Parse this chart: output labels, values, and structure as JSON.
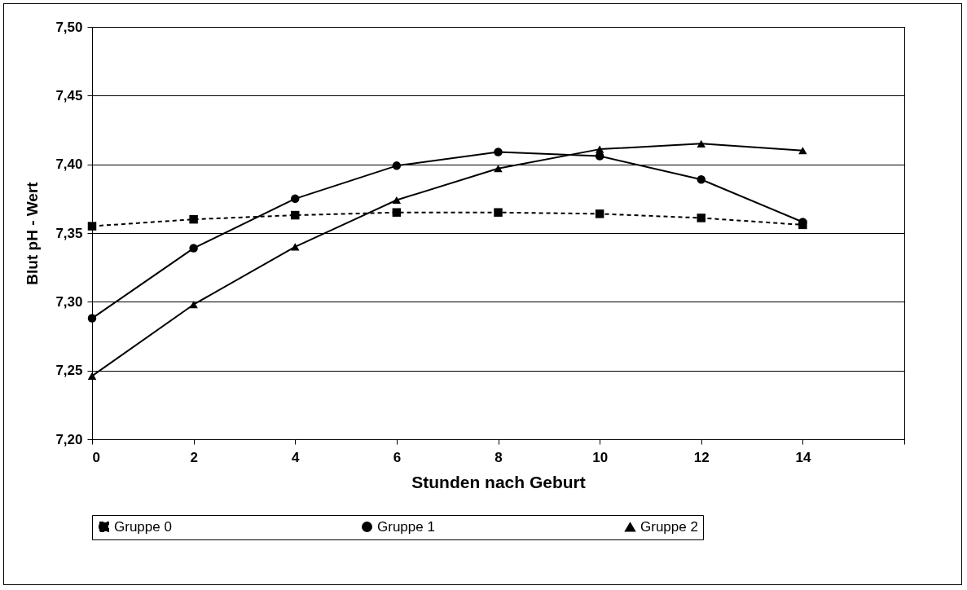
{
  "chart_data": {
    "type": "line",
    "xlabel": "Stunden nach Geburt",
    "ylabel": "Blut  pH  -  Wert",
    "x": [
      0,
      2,
      4,
      6,
      8,
      10,
      12,
      14
    ],
    "series": [
      {
        "name": "Gruppe 0",
        "color": "#000000",
        "marker": "square",
        "line_style": "dashed",
        "values": [
          7.355,
          7.36,
          7.363,
          7.365,
          7.365,
          7.364,
          7.361,
          7.356
        ]
      },
      {
        "name": "Gruppe 1",
        "color": "#000000",
        "marker": "circle",
        "line_style": "solid",
        "values": [
          7.288,
          7.339,
          7.375,
          7.399,
          7.409,
          7.406,
          7.389,
          7.358
        ]
      },
      {
        "name": "Gruppe 2",
        "color": "#000000",
        "marker": "triangle",
        "line_style": "solid",
        "values": [
          7.246,
          7.298,
          7.34,
          7.374,
          7.397,
          7.411,
          7.415,
          7.41
        ]
      }
    ],
    "xlim": [
      0,
      16
    ],
    "xticks": [
      0,
      2,
      4,
      6,
      8,
      10,
      12,
      14,
      {
        "value": 16,
        "label": null
      }
    ],
    "ylim": [
      7.2,
      7.5
    ],
    "yticks": [
      {
        "value": 7.2,
        "label": "7,20"
      },
      {
        "value": 7.25,
        "label": "7,25"
      },
      {
        "value": 7.3,
        "label": "7,30"
      },
      {
        "value": 7.35,
        "label": "7,35"
      },
      {
        "value": 7.4,
        "label": "7,40"
      },
      {
        "value": 7.45,
        "label": "7,45"
      },
      {
        "value": 7.5,
        "label": "7,50"
      }
    ],
    "grid": "y",
    "legend": "bottom"
  }
}
